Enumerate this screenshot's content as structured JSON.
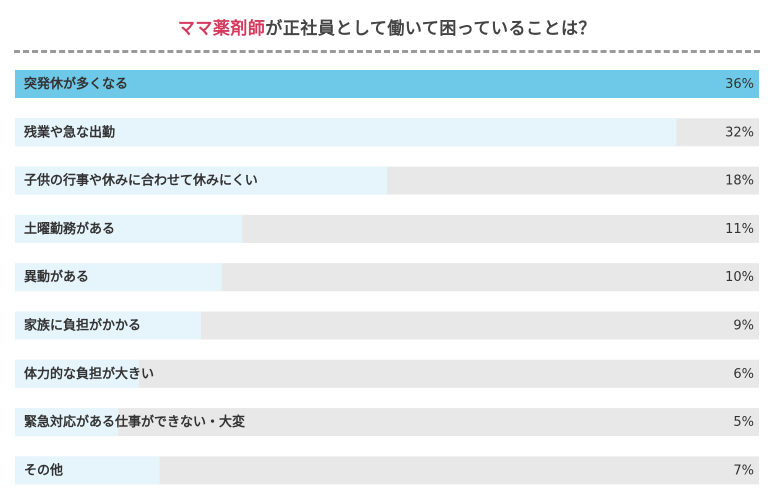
{
  "title": {
    "accent": "ママ薬剤師",
    "rest": "が正社員として働いて困っていることは？"
  },
  "colors": {
    "title_accent": "#d6395d",
    "bar_highlight": "#6ec8e8",
    "bar_fill": "#e6f5fc",
    "track": "#e8e8e8",
    "divider": "#9a9a9a"
  },
  "chart_data": {
    "type": "bar",
    "orientation": "horizontal",
    "categories": [
      "突発休が多くなる",
      "残業や急な出勤",
      "子供の行事や休みに合わせて休みにくい",
      "土曜勤務がある",
      "異動がある",
      "家族に負担がかかる",
      "体力的な負担が大きい",
      "緊急対応がある仕事ができない・大変",
      "その他"
    ],
    "values": [
      36,
      32,
      18,
      11,
      10,
      9,
      6,
      5,
      7
    ],
    "value_labels": [
      "36%",
      "32%",
      "18%",
      "11%",
      "10%",
      "9%",
      "6%",
      "5%",
      "7%"
    ],
    "unit": "%",
    "xlim": [
      0,
      36
    ],
    "highlight_index": 0,
    "grid": false,
    "legend": "none"
  }
}
